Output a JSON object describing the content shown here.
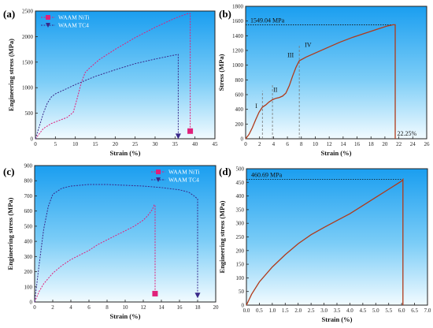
{
  "chart_data": [
    {
      "panel": "(a)",
      "type": "line",
      "xlabel": "Strain (%)",
      "ylabel": "Engineering stress (MPa)",
      "xlim": [
        0,
        45
      ],
      "ylim": [
        0,
        2500
      ],
      "xticks": [
        "0",
        "5",
        "10",
        "15",
        "20",
        "25",
        "30",
        "35",
        "40",
        "45"
      ],
      "yticks": [
        "0",
        "500",
        "1000",
        "1500",
        "2000",
        "2500"
      ],
      "legend_position": "top-left",
      "series": [
        {
          "name": "WAAM NiTi",
          "color": "#e0207a",
          "style": "dashed",
          "marker": "square",
          "fracture_strain": 38.8,
          "x": [
            0,
            2,
            4,
            6,
            8,
            9.5,
            10.5,
            11.5,
            12.5,
            13.5,
            16,
            20,
            25,
            30,
            35,
            38.2,
            38.8,
            38.8
          ],
          "y": [
            0,
            200,
            300,
            360,
            420,
            520,
            800,
            1100,
            1300,
            1380,
            1550,
            1750,
            1980,
            2180,
            2360,
            2450,
            2450,
            150
          ]
        },
        {
          "name": "WAAM TC4",
          "color": "#3a2a8a",
          "style": "dashed",
          "marker": "triangle-down",
          "fracture_strain": 35.8,
          "x": [
            0,
            1,
            2,
            3,
            4,
            5,
            7,
            10,
            15,
            20,
            25,
            30,
            35,
            35.8,
            35.8
          ],
          "y": [
            0,
            250,
            500,
            700,
            820,
            880,
            950,
            1060,
            1220,
            1350,
            1470,
            1560,
            1640,
            1650,
            40
          ]
        }
      ]
    },
    {
      "panel": "(b)",
      "type": "line",
      "xlabel": "Strain (%)",
      "ylabel": "Stress (MPa)",
      "xlim": [
        0,
        27
      ],
      "ylim": [
        0,
        1800
      ],
      "xticks": [
        "0",
        "2",
        "4",
        "6",
        "8",
        "10",
        "12",
        "14",
        "16",
        "18",
        "20",
        "22",
        "24",
        "26"
      ],
      "yticks": [
        "0",
        "200",
        "400",
        "600",
        "800",
        "1000",
        "1200",
        "1400",
        "1600",
        "1800"
      ],
      "series": [
        {
          "color": "#b03a1a",
          "x": [
            0,
            0.5,
            1,
            1.5,
            2,
            2.5,
            3,
            3.5,
            4,
            4.5,
            5,
            5.5,
            6,
            6.5,
            7,
            7.5,
            8,
            9,
            10,
            12,
            14,
            16,
            18,
            20,
            21,
            22,
            22.3,
            22.3
          ],
          "y": [
            0,
            60,
            150,
            260,
            360,
            430,
            460,
            500,
            530,
            550,
            560,
            580,
            620,
            720,
            850,
            970,
            1060,
            1110,
            1150,
            1230,
            1310,
            1380,
            1440,
            1500,
            1530,
            1549,
            1549,
            0
          ]
        }
      ],
      "stage_markers": [
        {
          "label": "I",
          "x": 2.5
        },
        {
          "label": "II",
          "x": 4
        },
        {
          "label": "III",
          "x": 8
        },
        {
          "label": "IV",
          "x": 8
        }
      ],
      "annotations": [
        {
          "text": "1549.04 MPa",
          "y": 1549.04
        },
        {
          "text": "22.25%",
          "x": 22.25
        }
      ]
    },
    {
      "panel": "(c)",
      "type": "line",
      "xlabel": "Strain (%)",
      "ylabel": "Engineering stress (MPa)",
      "xlim": [
        0,
        20
      ],
      "ylim": [
        0,
        900
      ],
      "xticks": [
        "0",
        "2",
        "4",
        "6",
        "8",
        "10",
        "12",
        "14",
        "16",
        "18",
        "20"
      ],
      "yticks": [
        "0",
        "100",
        "200",
        "300",
        "400",
        "500",
        "600",
        "700",
        "800",
        "900"
      ],
      "legend_position": "top-right",
      "series": [
        {
          "name": "WAAM NiTi",
          "color": "#e0207a",
          "style": "dashed",
          "marker": "square",
          "fracture_strain": 13.3,
          "x": [
            0,
            0.5,
            1,
            2,
            3,
            4,
            5,
            6,
            7,
            8,
            9,
            10,
            11,
            12,
            12.5,
            13,
            13.2,
            13.3,
            13.3
          ],
          "y": [
            0,
            70,
            120,
            190,
            240,
            280,
            310,
            340,
            380,
            410,
            440,
            470,
            500,
            540,
            570,
            610,
            640,
            640,
            55
          ]
        },
        {
          "name": "WAAM TC4",
          "color": "#3a2a8a",
          "style": "dashed",
          "marker": "triangle-down",
          "fracture_strain": 18,
          "x": [
            0,
            0.5,
            1,
            1.5,
            2,
            3,
            4,
            6,
            8,
            10,
            12,
            14,
            16,
            17,
            17.6,
            18,
            18
          ],
          "y": [
            0,
            250,
            480,
            630,
            710,
            750,
            765,
            775,
            775,
            770,
            765,
            755,
            740,
            725,
            700,
            680,
            40
          ]
        }
      ]
    },
    {
      "panel": "(d)",
      "type": "line",
      "xlabel": "Strain (%)",
      "ylabel": "Engineering stress (MPa)",
      "xlim": [
        0,
        7
      ],
      "ylim": [
        0,
        500
      ],
      "xticks": [
        "0.0",
        "0.5",
        "1.0",
        "1.5",
        "2.0",
        "2.5",
        "3.0",
        "3.5",
        "4.0",
        "4.5",
        "5.0",
        "5.5",
        "6.0",
        "6.5",
        "7.0"
      ],
      "yticks": [
        "0",
        "50",
        "100",
        "150",
        "200",
        "250",
        "300",
        "350",
        "400",
        "450",
        "500"
      ],
      "series": [
        {
          "color": "#b03a1a",
          "x": [
            0,
            0.2,
            0.5,
            1,
            1.5,
            2,
            2.5,
            3,
            3.5,
            4,
            4.5,
            5,
            5.5,
            6,
            6.05,
            6.05
          ],
          "y": [
            0,
            40,
            85,
            140,
            185,
            225,
            258,
            285,
            310,
            335,
            365,
            395,
            425,
            455,
            460.69,
            0
          ]
        }
      ],
      "annotations": [
        {
          "text": "460.69 MPa",
          "y": 460.69
        }
      ]
    }
  ]
}
